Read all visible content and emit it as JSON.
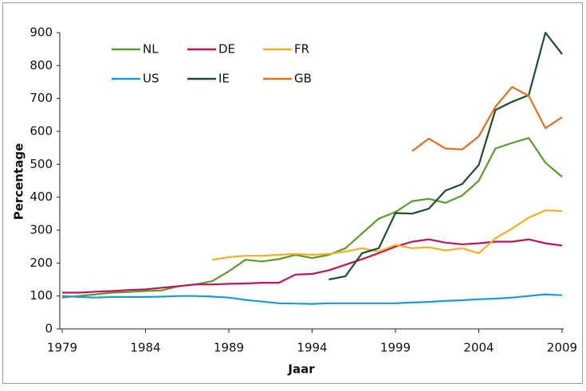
{
  "chart_data": {
    "type": "line",
    "x_label": "Jaar",
    "y_label": "Percentage",
    "x": [
      1979,
      1980,
      1981,
      1982,
      1983,
      1984,
      1985,
      1986,
      1987,
      1988,
      1989,
      1990,
      1991,
      1992,
      1993,
      1994,
      1995,
      1996,
      1997,
      1998,
      1999,
      2000,
      2001,
      2002,
      2003,
      2004,
      2005,
      2006,
      2007,
      2008,
      2009
    ],
    "xlim": [
      1979,
      2009
    ],
    "xticks": [
      1979,
      1984,
      1989,
      1994,
      1999,
      2004,
      2009
    ],
    "ylim": [
      0,
      900
    ],
    "yticks": [
      0,
      100,
      200,
      300,
      400,
      500,
      600,
      700,
      800,
      900
    ],
    "grid": false,
    "legend": "upper left",
    "series": [
      {
        "name": "NL",
        "color": "#5a9a2e",
        "values": [
          95,
          100,
          105,
          110,
          112,
          115,
          117,
          130,
          135,
          145,
          175,
          210,
          205,
          212,
          225,
          215,
          225,
          245,
          290,
          335,
          355,
          388,
          395,
          383,
          405,
          450,
          548,
          565,
          580,
          505,
          462
        ]
      },
      {
        "name": "DE",
        "color": "#c0145a",
        "values": [
          110,
          110,
          113,
          115,
          118,
          120,
          125,
          130,
          135,
          135,
          137,
          138,
          140,
          140,
          165,
          167,
          178,
          195,
          212,
          230,
          250,
          265,
          272,
          262,
          257,
          260,
          265,
          265,
          272,
          260,
          253
        ]
      },
      {
        "name": "FR",
        "color": "#f0b020",
        "values": [
          null,
          null,
          null,
          null,
          null,
          null,
          null,
          null,
          null,
          210,
          218,
          222,
          222,
          225,
          228,
          225,
          228,
          235,
          245,
          235,
          255,
          245,
          248,
          238,
          245,
          230,
          275,
          305,
          338,
          360,
          358
        ]
      },
      {
        "name": "US",
        "color": "#1a9ad6",
        "values": [
          100,
          97,
          95,
          97,
          97,
          97,
          98,
          100,
          100,
          98,
          95,
          88,
          83,
          78,
          77,
          76,
          78,
          78,
          78,
          78,
          78,
          80,
          82,
          85,
          87,
          90,
          92,
          95,
          100,
          105,
          102
        ]
      },
      {
        "name": "IE",
        "color": "#1e4d2b",
        "values": [
          null,
          null,
          null,
          null,
          null,
          null,
          null,
          null,
          null,
          null,
          null,
          null,
          null,
          null,
          null,
          null,
          150,
          160,
          230,
          245,
          352,
          350,
          365,
          420,
          440,
          498,
          665,
          690,
          710,
          900,
          835
        ]
      },
      {
        "name": "GB",
        "color": "#e07020",
        "values": [
          null,
          null,
          null,
          null,
          null,
          null,
          null,
          null,
          null,
          null,
          null,
          null,
          null,
          null,
          null,
          null,
          null,
          null,
          null,
          null,
          null,
          540,
          578,
          548,
          545,
          585,
          675,
          735,
          708,
          610,
          643
        ]
      }
    ]
  }
}
